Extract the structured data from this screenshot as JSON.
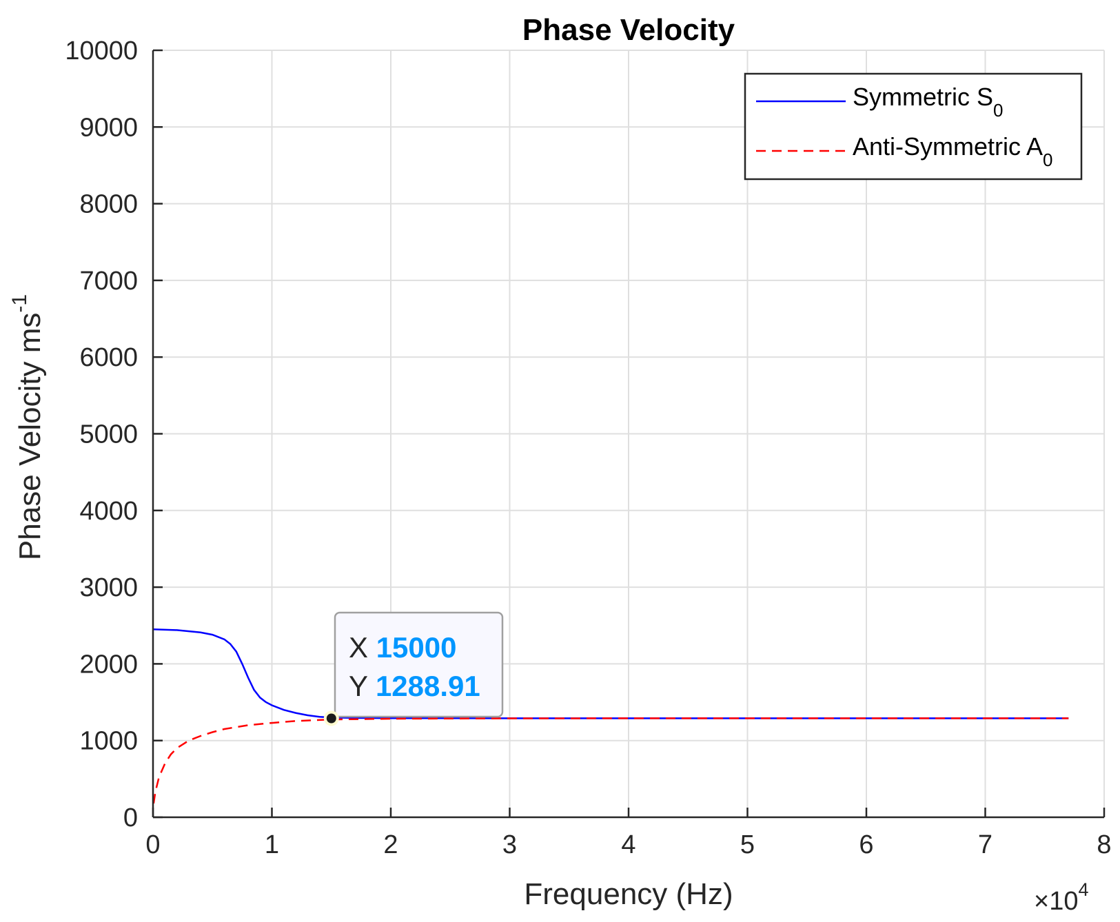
{
  "chart_data": {
    "type": "line",
    "title": "Phase Velocity",
    "xlabel": "Frequency (Hz)",
    "ylabel": "Phase Velocity ms",
    "ylabel_superscript": "-1",
    "x_exponent": {
      "base": "×10",
      "power": "4"
    },
    "xlim": [
      0,
      80000
    ],
    "ylim": [
      0,
      10000
    ],
    "grid": true,
    "legend_position": "top-right",
    "x_ticks": [
      {
        "value": 0,
        "label": "0"
      },
      {
        "value": 10000,
        "label": "1"
      },
      {
        "value": 20000,
        "label": "2"
      },
      {
        "value": 30000,
        "label": "3"
      },
      {
        "value": 40000,
        "label": "4"
      },
      {
        "value": 50000,
        "label": "5"
      },
      {
        "value": 60000,
        "label": "6"
      },
      {
        "value": 70000,
        "label": "7"
      },
      {
        "value": 80000,
        "label": "8"
      }
    ],
    "y_ticks": [
      {
        "value": 0,
        "label": "0"
      },
      {
        "value": 1000,
        "label": "1000"
      },
      {
        "value": 2000,
        "label": "2000"
      },
      {
        "value": 3000,
        "label": "3000"
      },
      {
        "value": 4000,
        "label": "4000"
      },
      {
        "value": 5000,
        "label": "5000"
      },
      {
        "value": 6000,
        "label": "6000"
      },
      {
        "value": 7000,
        "label": "7000"
      },
      {
        "value": 8000,
        "label": "8000"
      },
      {
        "value": 9000,
        "label": "9000"
      },
      {
        "value": 10000,
        "label": "10000"
      }
    ],
    "series": [
      {
        "name": "Symmetric S",
        "subscript": "0",
        "color": "#0000ff",
        "dash": "solid",
        "x": [
          0,
          2000,
          4000,
          5000,
          6000,
          6500,
          7000,
          7500,
          8000,
          8500,
          9000,
          9500,
          10000,
          11000,
          12000,
          13000,
          14000,
          15000,
          17000,
          20000,
          30000,
          77000
        ],
        "y": [
          2450,
          2440,
          2410,
          2380,
          2320,
          2260,
          2160,
          2000,
          1820,
          1660,
          1560,
          1500,
          1460,
          1400,
          1360,
          1330,
          1310,
          1300,
          1295,
          1292,
          1290,
          1290
        ]
      },
      {
        "name": "Anti-Symmetric A",
        "subscript": "0",
        "color": "#ff0000",
        "dash": "dashed",
        "x": [
          50,
          200,
          500,
          1000,
          1500,
          2000,
          3000,
          4000,
          5000,
          6000,
          8000,
          10000,
          12000,
          15000,
          20000,
          30000,
          40000,
          77000
        ],
        "y": [
          180,
          330,
          520,
          700,
          820,
          900,
          1000,
          1060,
          1110,
          1150,
          1200,
          1230,
          1255,
          1275,
          1285,
          1289,
          1290,
          1290
        ]
      }
    ],
    "datatip": {
      "x": 15000,
      "y": 1288.91,
      "x_prefix": "X",
      "y_prefix": "Y",
      "x_text": "15000",
      "y_text": "1288.91",
      "value_color": "#0096ff"
    },
    "colors": {
      "grid": "#dfdfdf",
      "axis": "#262626"
    }
  }
}
